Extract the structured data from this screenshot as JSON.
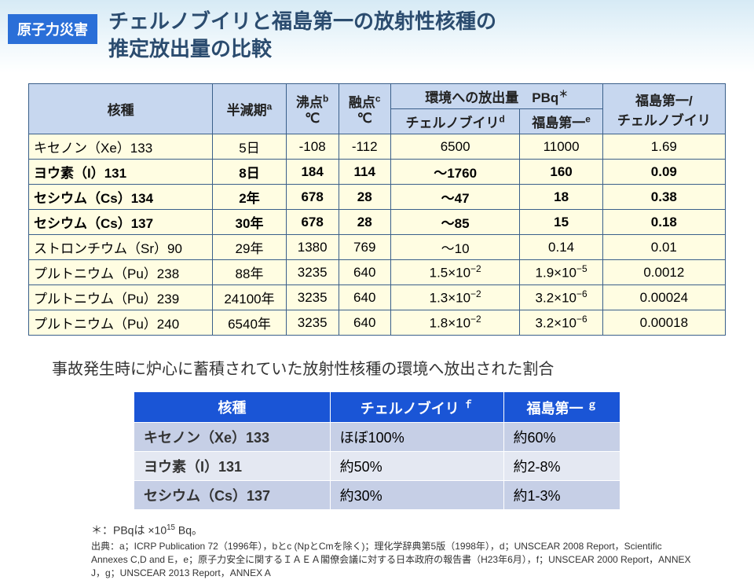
{
  "header": {
    "badge": "原子力災害",
    "title_line1": "チェルノブイリと福島第一の放射性核種の",
    "title_line2": "推定放出量の比較"
  },
  "main_table": {
    "headers": {
      "nuclide": "核種",
      "halflife": "半減期",
      "halflife_sup": "a",
      "boil": "沸点",
      "boil_sup": "b",
      "boil_unit": "℃",
      "melt": "融点",
      "melt_sup": "c",
      "melt_unit": "℃",
      "emission": "環境への放出量　PBq",
      "emission_sup": "＊",
      "chernobyl": "チェルノブイリ",
      "chernobyl_sup": "d",
      "fukushima": "福島第一",
      "fukushima_sup": "e",
      "ratio": "福島第一/",
      "ratio2": "チェルノブイリ"
    },
    "rows": [
      {
        "name": "キセノン（Xe）133",
        "hl": "5日",
        "boil": "-108",
        "melt": "-112",
        "ch": "6500",
        "fk": "11000",
        "ratio": "1.69",
        "bold": false
      },
      {
        "name": "ヨウ素（I）131",
        "hl": "8日",
        "boil": "184",
        "melt": "114",
        "ch": "～1760",
        "fk": "160",
        "ratio": "0.09",
        "bold": true
      },
      {
        "name": "セシウム（Cs）134",
        "hl": "2年",
        "boil": "678",
        "melt": "28",
        "ch": "～47",
        "fk": "18",
        "ratio": "0.38",
        "bold": true
      },
      {
        "name": "セシウム（Cs）137",
        "hl": "30年",
        "boil": "678",
        "melt": "28",
        "ch": "～85",
        "fk": "15",
        "ratio": "0.18",
        "bold": true
      },
      {
        "name": "ストロンチウム（Sr）90",
        "hl": "29年",
        "boil": "1380",
        "melt": "769",
        "ch": "～10",
        "fk": "0.14",
        "ratio": "0.01",
        "bold": false
      },
      {
        "name": "プルトニウム（Pu）238",
        "hl": "88年",
        "boil": "3235",
        "melt": "640",
        "ch": "1.5×10",
        "ch_sup": "−2",
        "fk": "1.9×10",
        "fk_sup": "−5",
        "ratio": "0.0012",
        "bold": false
      },
      {
        "name": "プルトニウム（Pu）239",
        "hl": "24100年",
        "boil": "3235",
        "melt": "640",
        "ch": "1.3×10",
        "ch_sup": "−2",
        "fk": "3.2×10",
        "fk_sup": "−6",
        "ratio": "0.00024",
        "bold": false
      },
      {
        "name": "プルトニウム（Pu）240",
        "hl": "6540年",
        "boil": "3235",
        "melt": "640",
        "ch": "1.8×10",
        "ch_sup": "−2",
        "fk": "3.2×10",
        "fk_sup": "−6",
        "ratio": "0.00018",
        "bold": false
      }
    ]
  },
  "subtitle": "事故発生時に炉心に蓄積されていた放射性核種の環境へ放出された割合",
  "release_table": {
    "headers": {
      "nuclide": "核種",
      "ch": "チェルノブイリ",
      "ch_sup": "ｆ",
      "fk": "福島第一",
      "fk_sup": "ｇ"
    },
    "rows": [
      {
        "name": "キセノン（Xe）133",
        "ch": "ほぼ100%",
        "fk": "約60%"
      },
      {
        "name": "ヨウ素（I）131",
        "ch": "約50%",
        "fk": "約2-8%"
      },
      {
        "name": "セシウム（Cs）137",
        "ch": "約30%",
        "fk": "約1-3%"
      }
    ]
  },
  "footnotes": {
    "line1_a": "＊：PBqは ×10",
    "line1_sup": "15",
    "line1_b": " Bq。",
    "line2": "出典：a；ICRP Publication 72（1996年），bとc (NpとCmを除く)；理化学辞典第5版（1998年），d；UNSCEAR 2008 Report，Scientific Annexes C,D and E，e；原子力安全に関するＩＡＥＡ閣僚会議に対する日本政府の報告書（H23年6月），f；UNSCEAR 2000 Report，ANNEX J，g；UNSCEAR 2013 Report，ANNEX A"
  },
  "colors": {
    "badge_bg": "#2a6fd8",
    "title_color": "#2b4c6f",
    "th_bg": "#c7d7ef",
    "row_bg": "#fffde2",
    "border": "#3a5f8a",
    "rel_th_bg": "#1a55d6",
    "rel_even": "#c6cfe6",
    "rel_odd": "#e4e8f2"
  }
}
